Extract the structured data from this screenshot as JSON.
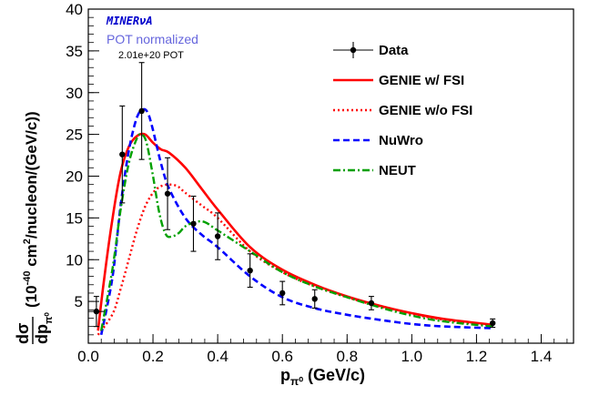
{
  "chart_data": {
    "type": "line",
    "title": "",
    "xlabel": {
      "main": "p",
      "sub": "π⁰",
      "unit": " (GeV/c)"
    },
    "ylabel": {
      "frac_num": "dσ",
      "frac_den": "dp",
      "frac_den_sub": "π⁰",
      "unit_open": "(10",
      "unit_exp": "-40",
      "unit_mid": " cm",
      "unit_sq": "2",
      "unit_close": "/nucleon/(GeV/c))"
    },
    "xlim": [
      0.0,
      1.5
    ],
    "ylim": [
      0,
      40
    ],
    "x_ticks": [
      0.0,
      0.2,
      0.4,
      0.6,
      0.8,
      1.0,
      1.2,
      1.4
    ],
    "x_tick_labels": [
      "0.0",
      "0.2",
      "0.4",
      "0.6",
      "0.8",
      "1.0",
      "1.2",
      "1.4"
    ],
    "y_ticks": [
      5,
      10,
      15,
      20,
      25,
      30,
      35,
      40
    ],
    "y_tick_labels": [
      "5",
      "10",
      "15",
      "20",
      "25",
      "30",
      "35",
      "40"
    ],
    "grid": false,
    "annotations": {
      "experiment": "MINERνA",
      "pot_normalized": "POT normalized",
      "pot_value": "2.01e+20 POT"
    },
    "legend": {
      "placement": "top-right",
      "entries": [
        {
          "label": "Data",
          "style": "marker",
          "color": "#000000"
        },
        {
          "label": "GENIE w/ FSI",
          "style": "solid",
          "color": "#ff0000"
        },
        {
          "label": "GENIE w/o FSI",
          "style": "dotted",
          "color": "#ff0000"
        },
        {
          "label": "NuWro",
          "style": "dashed",
          "color": "#0000ff"
        },
        {
          "label": "NEUT",
          "style": "dashdot",
          "color": "#00a000"
        }
      ]
    },
    "data_points": [
      {
        "x": 0.025,
        "y": 3.8,
        "err": 1.8,
        "xerr": 0.025
      },
      {
        "x": 0.105,
        "y": 22.6,
        "err": 5.8,
        "xerr": 0.0
      },
      {
        "x": 0.165,
        "y": 27.8,
        "err": 5.8,
        "xerr": 0.0
      },
      {
        "x": 0.245,
        "y": 17.9,
        "err": 4.3,
        "xerr": 0.0
      },
      {
        "x": 0.325,
        "y": 14.3,
        "err": 3.3,
        "xerr": 0.0
      },
      {
        "x": 0.4,
        "y": 12.8,
        "err": 2.8,
        "xerr": 0.0
      },
      {
        "x": 0.5,
        "y": 8.7,
        "err": 2.0,
        "xerr": 0.0
      },
      {
        "x": 0.6,
        "y": 6.0,
        "err": 1.4,
        "xerr": 0.0
      },
      {
        "x": 0.7,
        "y": 5.3,
        "err": 1.1,
        "xerr": 0.0
      },
      {
        "x": 0.875,
        "y": 4.8,
        "err": 0.8,
        "xerr": 0.0
      },
      {
        "x": 1.25,
        "y": 2.4,
        "err": 0.5,
        "xerr": 0.0
      }
    ],
    "series": [
      {
        "name": "GENIE w/ FSI",
        "x": [
          0.03,
          0.05,
          0.075,
          0.1,
          0.125,
          0.15,
          0.175,
          0.2,
          0.225,
          0.25,
          0.3,
          0.35,
          0.4,
          0.5,
          0.6,
          0.7,
          0.8,
          0.9,
          1.0,
          1.1,
          1.25
        ],
        "y": [
          1.5,
          8.0,
          15.0,
          20.5,
          23.5,
          24.8,
          25.0,
          24.0,
          23.2,
          22.8,
          21.0,
          18.5,
          16.0,
          11.5,
          8.8,
          7.0,
          5.6,
          4.5,
          3.6,
          2.9,
          2.2
        ]
      },
      {
        "name": "GENIE w/o FSI",
        "x": [
          0.03,
          0.075,
          0.1,
          0.125,
          0.15,
          0.175,
          0.2,
          0.225,
          0.25,
          0.275,
          0.3,
          0.35,
          0.4,
          0.5,
          0.6,
          0.7,
          0.8,
          0.9,
          1.0,
          1.1,
          1.25
        ],
        "y": [
          1.0,
          3.5,
          6.5,
          10.0,
          13.5,
          16.3,
          18.0,
          18.8,
          19.0,
          18.8,
          18.0,
          16.5,
          15.0,
          11.0,
          8.5,
          6.8,
          5.5,
          4.4,
          3.5,
          2.8,
          2.1
        ]
      },
      {
        "name": "NuWro",
        "x": [
          0.04,
          0.075,
          0.1,
          0.125,
          0.15,
          0.17,
          0.185,
          0.2,
          0.225,
          0.25,
          0.3,
          0.35,
          0.4,
          0.5,
          0.6,
          0.7,
          0.8,
          0.9,
          1.0,
          1.1,
          1.25
        ],
        "y": [
          1.0,
          8.0,
          16.5,
          23.0,
          27.0,
          28.0,
          27.5,
          25.5,
          21.5,
          18.5,
          15.0,
          13.0,
          11.5,
          8.0,
          5.5,
          4.2,
          3.4,
          2.8,
          2.3,
          2.0,
          1.8
        ]
      },
      {
        "name": "NEUT",
        "x": [
          0.04,
          0.075,
          0.1,
          0.125,
          0.15,
          0.165,
          0.18,
          0.2,
          0.22,
          0.24,
          0.26,
          0.28,
          0.3,
          0.33,
          0.36,
          0.4,
          0.5,
          0.6,
          0.7,
          0.8,
          0.9,
          1.0,
          1.1,
          1.25
        ],
        "y": [
          1.5,
          9.0,
          16.0,
          21.5,
          24.5,
          25.0,
          24.0,
          20.0,
          15.5,
          13.0,
          12.8,
          13.2,
          14.0,
          14.5,
          14.5,
          13.5,
          11.0,
          8.5,
          6.8,
          5.5,
          4.3,
          3.3,
          2.6,
          2.0
        ]
      }
    ]
  }
}
